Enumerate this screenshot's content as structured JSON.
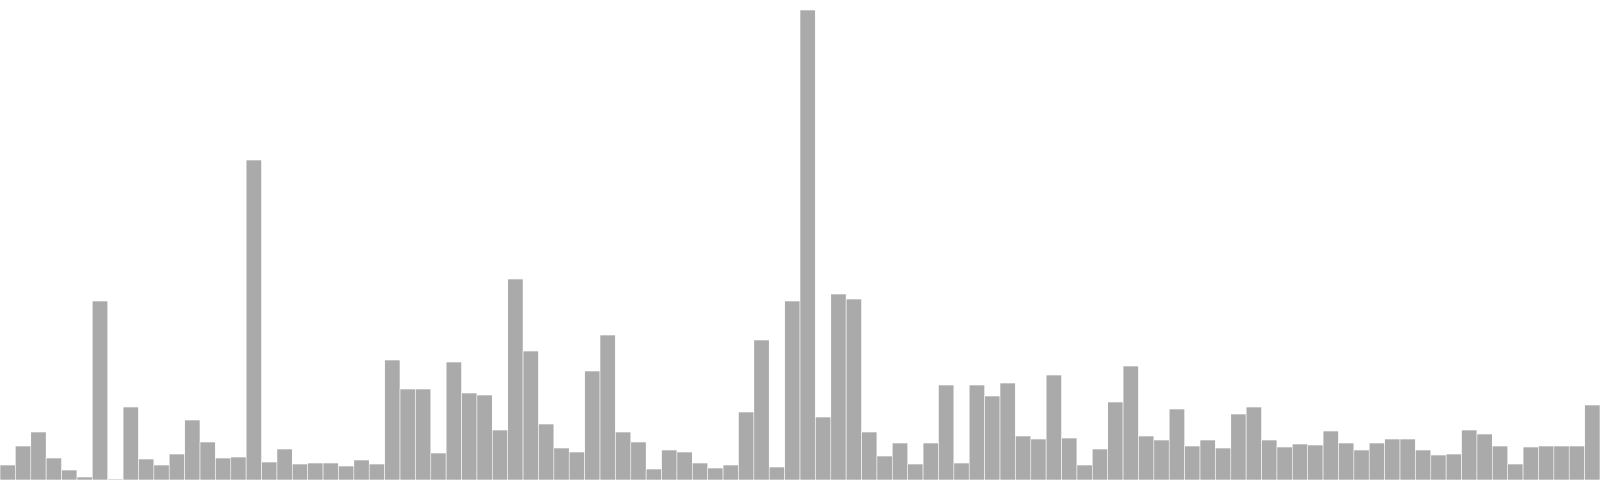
{
  "chart_data": {
    "type": "bar",
    "title": "",
    "xlabel": "",
    "ylabel": "",
    "ylim": [
      0,
      480
    ],
    "grid": false,
    "legend": "none",
    "bar_color": "#aaaaaa",
    "bar_edge_color": "#ffffff",
    "values": [
      15,
      34,
      48,
      22,
      10,
      3,
      179,
      1,
      73,
      21,
      15,
      26,
      60,
      38,
      22,
      23,
      320,
      18,
      31,
      16,
      17,
      17,
      14,
      20,
      16,
      120,
      91,
      91,
      27,
      118,
      87,
      85,
      50,
      201,
      129,
      56,
      32,
      28,
      109,
      145,
      48,
      38,
      11,
      30,
      28,
      17,
      12,
      15,
      68,
      140,
      13,
      179,
      470,
      63,
      186,
      181,
      48,
      24,
      37,
      16,
      37,
      95,
      17,
      95,
      84,
      97,
      44,
      41,
      105,
      42,
      15,
      31,
      78,
      114,
      44,
      40,
      71,
      34,
      40,
      32,
      66,
      73,
      40,
      33,
      36,
      35,
      49,
      37,
      30,
      37,
      41,
      41,
      30,
      25,
      26,
      50,
      46,
      34,
      16,
      33,
      34,
      34,
      34,
      75
    ]
  }
}
